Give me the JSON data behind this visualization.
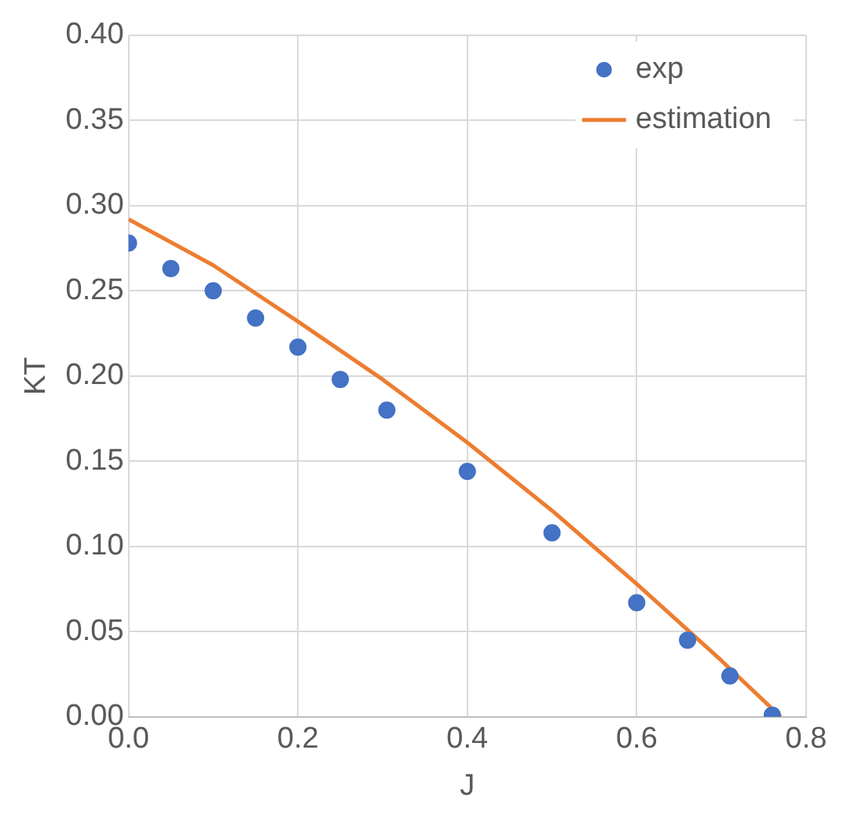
{
  "chart_data": {
    "type": "scatter",
    "xlabel": "J",
    "ylabel": "KT",
    "xlim": [
      0,
      0.8
    ],
    "xticks": [
      {
        "value": 0,
        "label": "0.0"
      },
      0.2,
      0.4,
      0.6,
      0.8
    ],
    "ylim": [
      0,
      0.4
    ],
    "yticks": [
      {
        "value": 0,
        "label": "0.00"
      },
      {
        "value": 0.05,
        "label": "0.05"
      },
      {
        "value": 0.1,
        "label": "0.10"
      },
      {
        "value": 0.15,
        "label": "0.15"
      },
      {
        "value": 0.2,
        "label": "0.20"
      },
      {
        "value": 0.25,
        "label": "0.25"
      },
      {
        "value": 0.3,
        "label": "0.30"
      },
      {
        "value": 0.35,
        "label": "0.35"
      },
      {
        "value": 0.4,
        "label": "0.40"
      }
    ],
    "grid": true,
    "legend": "top right",
    "series": [
      {
        "name": "exp",
        "color": "#4472c4",
        "marker": "circle",
        "x": [
          0,
          0.05,
          0.1,
          0.15,
          0.2,
          0.25,
          0.305,
          0.4,
          0.5,
          0.6,
          0.66,
          0.71,
          0.76
        ],
        "values": [
          0.278,
          0.263,
          0.25,
          0.234,
          0.217,
          0.198,
          0.18,
          0.144,
          0.108,
          0.067,
          0.045,
          0.024,
          0.001
        ]
      },
      {
        "name": "estimation",
        "type": "line",
        "color": "#ed7d31",
        "marker": "none",
        "line_style": "solid",
        "x": [
          0,
          0.1,
          0.2,
          0.3,
          0.4,
          0.5,
          0.6,
          0.7,
          0.77
        ],
        "values": [
          0.292,
          0.265,
          0.232,
          0.198,
          0.161,
          0.121,
          0.078,
          0.033,
          0
        ]
      }
    ]
  }
}
